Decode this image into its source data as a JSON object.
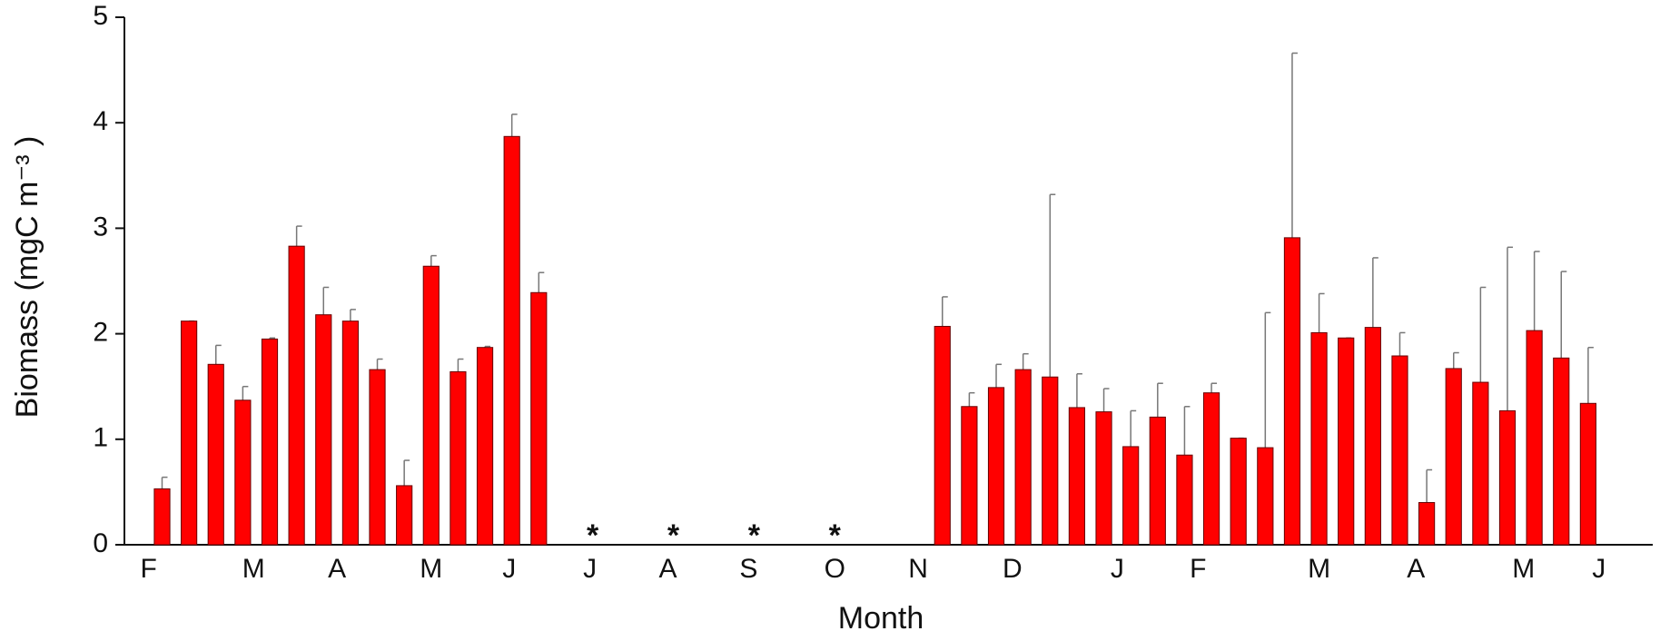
{
  "chart_data": {
    "type": "bar",
    "xlabel": "Month",
    "ylabel": "Biomass (mgC m⁻³ )",
    "x": [
      0,
      1,
      2,
      3,
      4,
      5,
      6,
      7,
      8,
      9,
      10,
      11,
      12,
      13,
      14,
      29,
      30,
      31,
      32,
      33,
      34,
      35,
      36,
      37,
      38,
      39,
      40,
      41,
      42,
      43,
      44,
      45,
      46,
      47,
      48,
      49,
      50,
      51,
      52,
      53
    ],
    "values": [
      0.53,
      2.12,
      1.71,
      1.37,
      1.95,
      2.83,
      2.18,
      2.12,
      1.66,
      0.56,
      2.64,
      1.64,
      1.87,
      3.87,
      2.39,
      2.07,
      1.31,
      1.49,
      1.66,
      1.59,
      1.3,
      1.26,
      0.93,
      1.21,
      0.85,
      1.44,
      1.01,
      0.92,
      2.91,
      2.01,
      1.96,
      2.06,
      1.79,
      0.4,
      1.67,
      1.54,
      1.27,
      2.03,
      1.77,
      1.34
    ],
    "errors": [
      0.11,
      0,
      0.18,
      0.13,
      0.01,
      0.19,
      0.26,
      0.11,
      0.1,
      0.24,
      0.1,
      0.12,
      0.01,
      0.21,
      0.19,
      0.28,
      0.13,
      0.22,
      0.15,
      1.73,
      0.32,
      0.22,
      0.34,
      0.32,
      0.46,
      0.09,
      0,
      1.28,
      1.75,
      0.37,
      0,
      0.66,
      0.22,
      0.31,
      0.15,
      0.9,
      1.55,
      0.75,
      0.82,
      0.53
    ],
    "color": "#ff0000",
    "annotations": [
      {
        "text": "*",
        "x": 16
      },
      {
        "text": "*",
        "x": 19
      },
      {
        "text": "*",
        "x": 22
      },
      {
        "text": "*",
        "x": 25
      }
    ],
    "xlim": [
      -1.4,
      55.4
    ],
    "xticks": [
      {
        "value": -0.5,
        "label": "F"
      },
      {
        "value": 3.4,
        "label": "M"
      },
      {
        "value": 6.5,
        "label": "A"
      },
      {
        "value": 10,
        "label": "M"
      },
      {
        "value": 12.9,
        "label": "J"
      },
      {
        "value": 15.9,
        "label": "J"
      },
      {
        "value": 18.8,
        "label": "A"
      },
      {
        "value": 21.8,
        "label": "S"
      },
      {
        "value": 25,
        "label": "O"
      },
      {
        "value": 28.1,
        "label": "N"
      },
      {
        "value": 31.6,
        "label": "D"
      },
      {
        "value": 35.5,
        "label": "J"
      },
      {
        "value": 38.5,
        "label": "F"
      },
      {
        "value": 43,
        "label": "M"
      },
      {
        "value": 46.6,
        "label": "A"
      },
      {
        "value": 50.6,
        "label": "M"
      },
      {
        "value": 53.4,
        "label": "J"
      }
    ],
    "ylim": [
      0,
      5
    ],
    "yticks": [
      0,
      1,
      2,
      3,
      4,
      5
    ],
    "grid": false
  }
}
